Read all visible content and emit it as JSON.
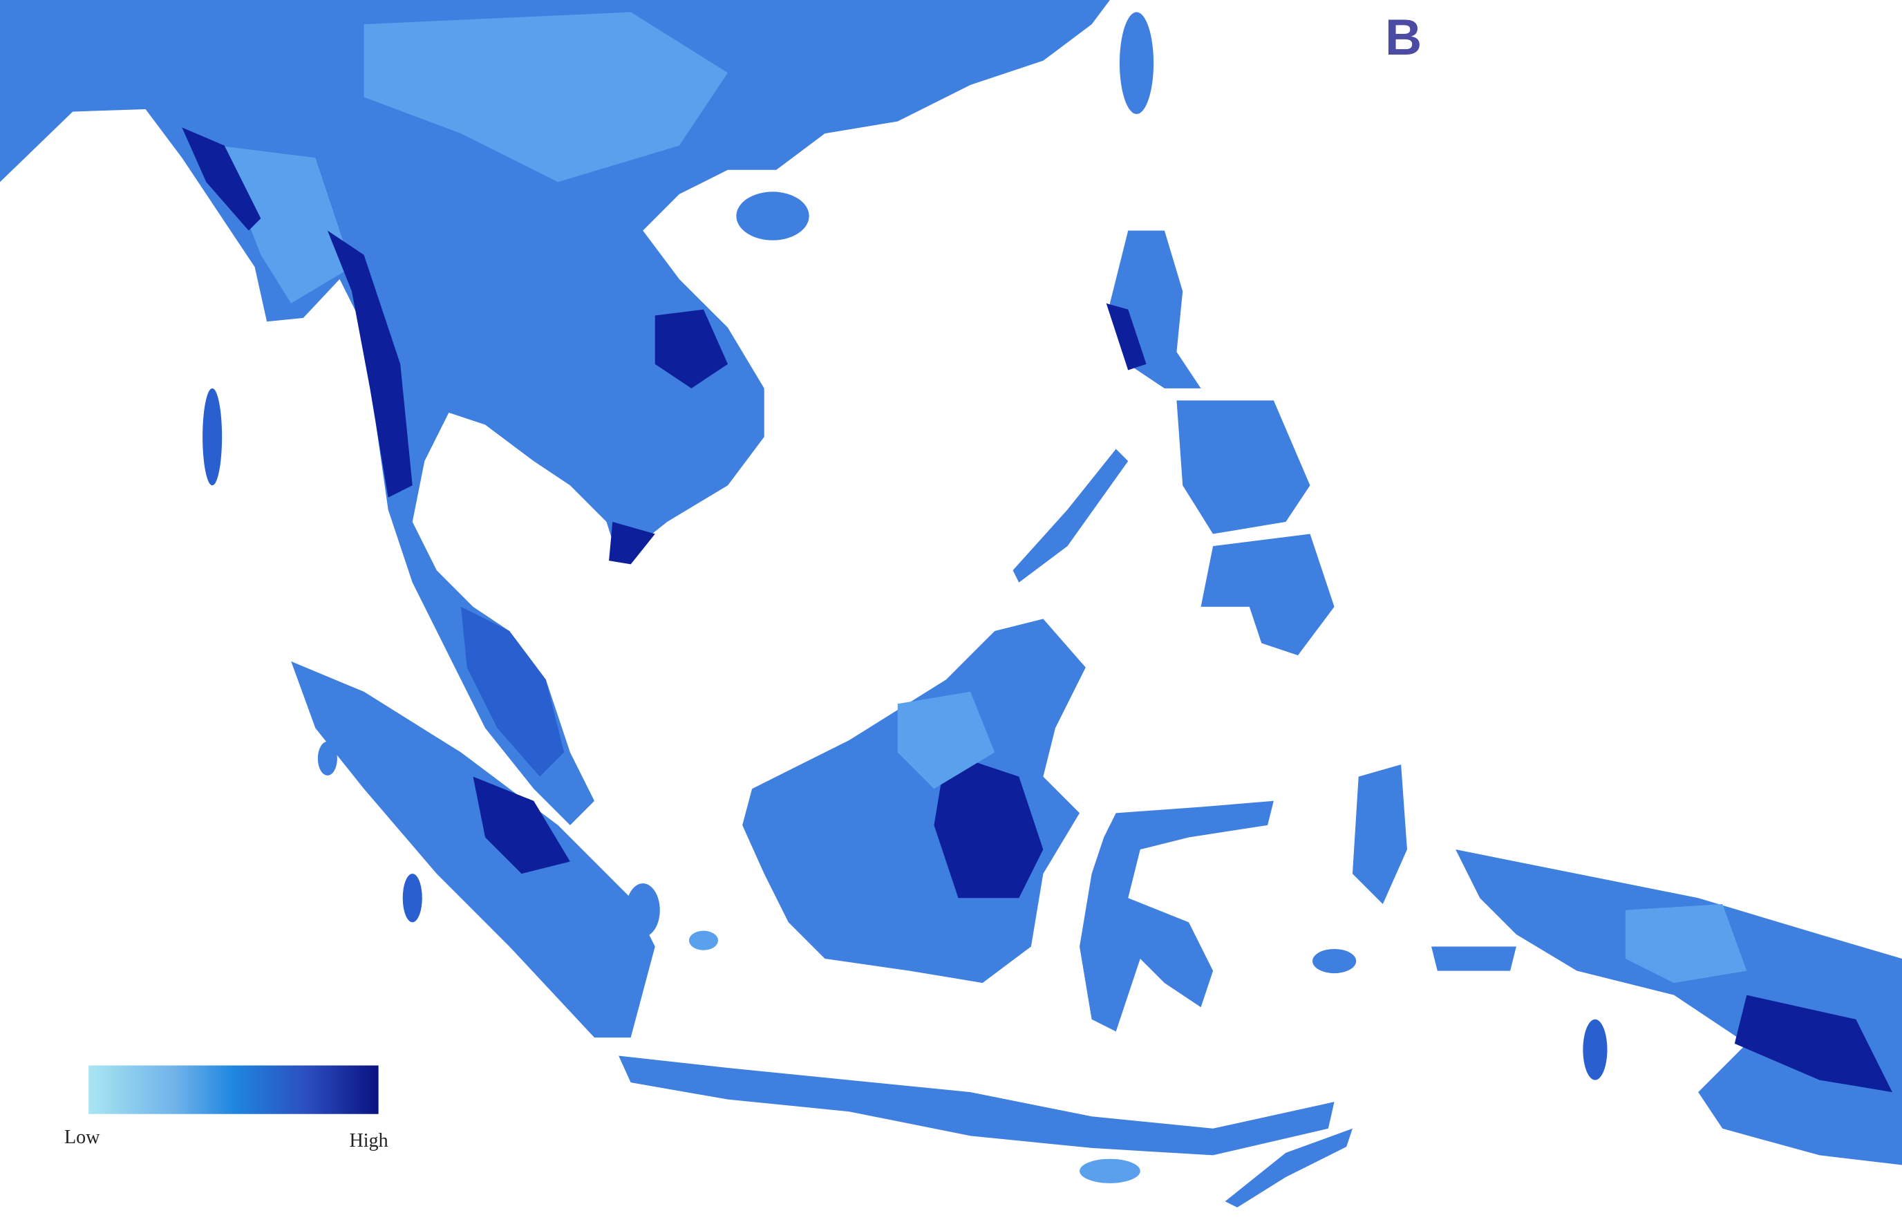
{
  "panel_label": "B",
  "legend": {
    "low_label": "Low",
    "high_label": "High"
  }
}
